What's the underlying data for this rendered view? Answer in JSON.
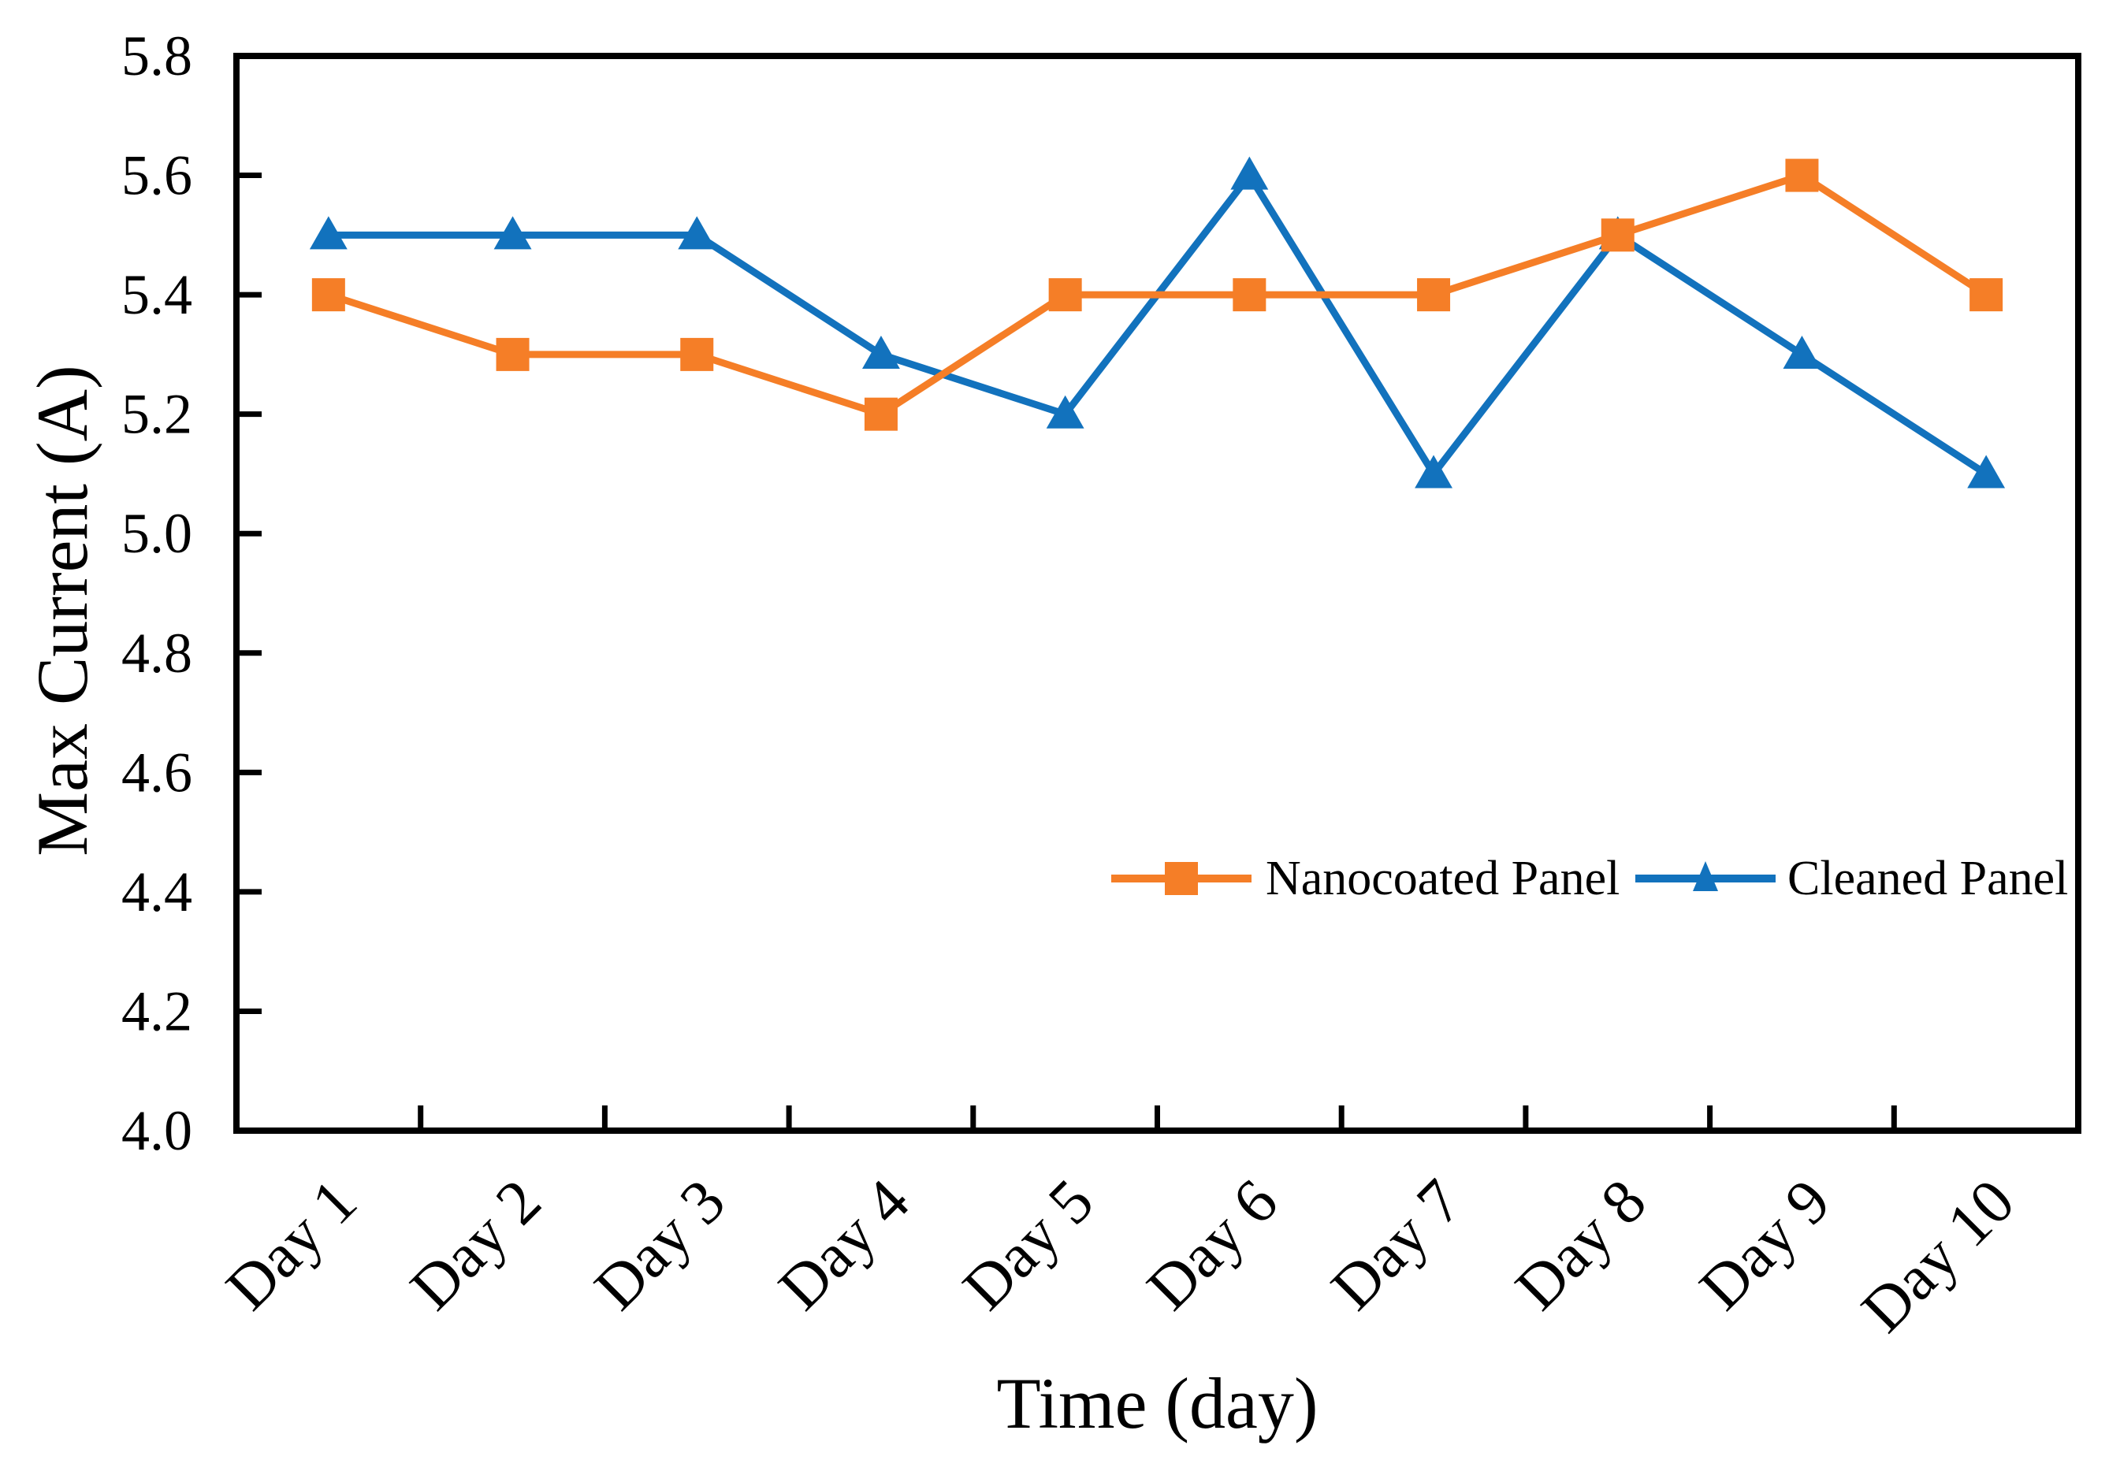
{
  "figure": {
    "background": "#ffffff",
    "axis_color": "#000000"
  },
  "chart_data": {
    "type": "line",
    "title": "",
    "xlabel": "Time (day)",
    "ylabel": "Max Current (A)",
    "categories": [
      "Day 1",
      "Day 2",
      "Day 3",
      "Day 4",
      "Day 5",
      "Day 6",
      "Day 7",
      "Day 8",
      "Day 9",
      "Day 10"
    ],
    "series": [
      {
        "name": "Nanocoated Panel",
        "color": "#F57E27",
        "marker": "square",
        "values": [
          5.4,
          5.3,
          5.3,
          5.2,
          5.4,
          5.4,
          5.4,
          5.5,
          5.6,
          5.4
        ]
      },
      {
        "name": "Cleaned Panel",
        "color": "#1272BD",
        "marker": "triangle",
        "values": [
          5.5,
          5.5,
          5.5,
          5.3,
          5.2,
          5.6,
          5.1,
          5.5,
          5.3,
          5.1
        ]
      }
    ],
    "ylim": [
      4.0,
      5.8
    ],
    "ytick_labels": [
      "4.0",
      "4.2",
      "4.4",
      "4.6",
      "4.8",
      "5.0",
      "5.2",
      "5.4",
      "5.6",
      "5.8"
    ],
    "grid": "off",
    "legend_position": "inside center-right",
    "tick_style": "inward"
  }
}
